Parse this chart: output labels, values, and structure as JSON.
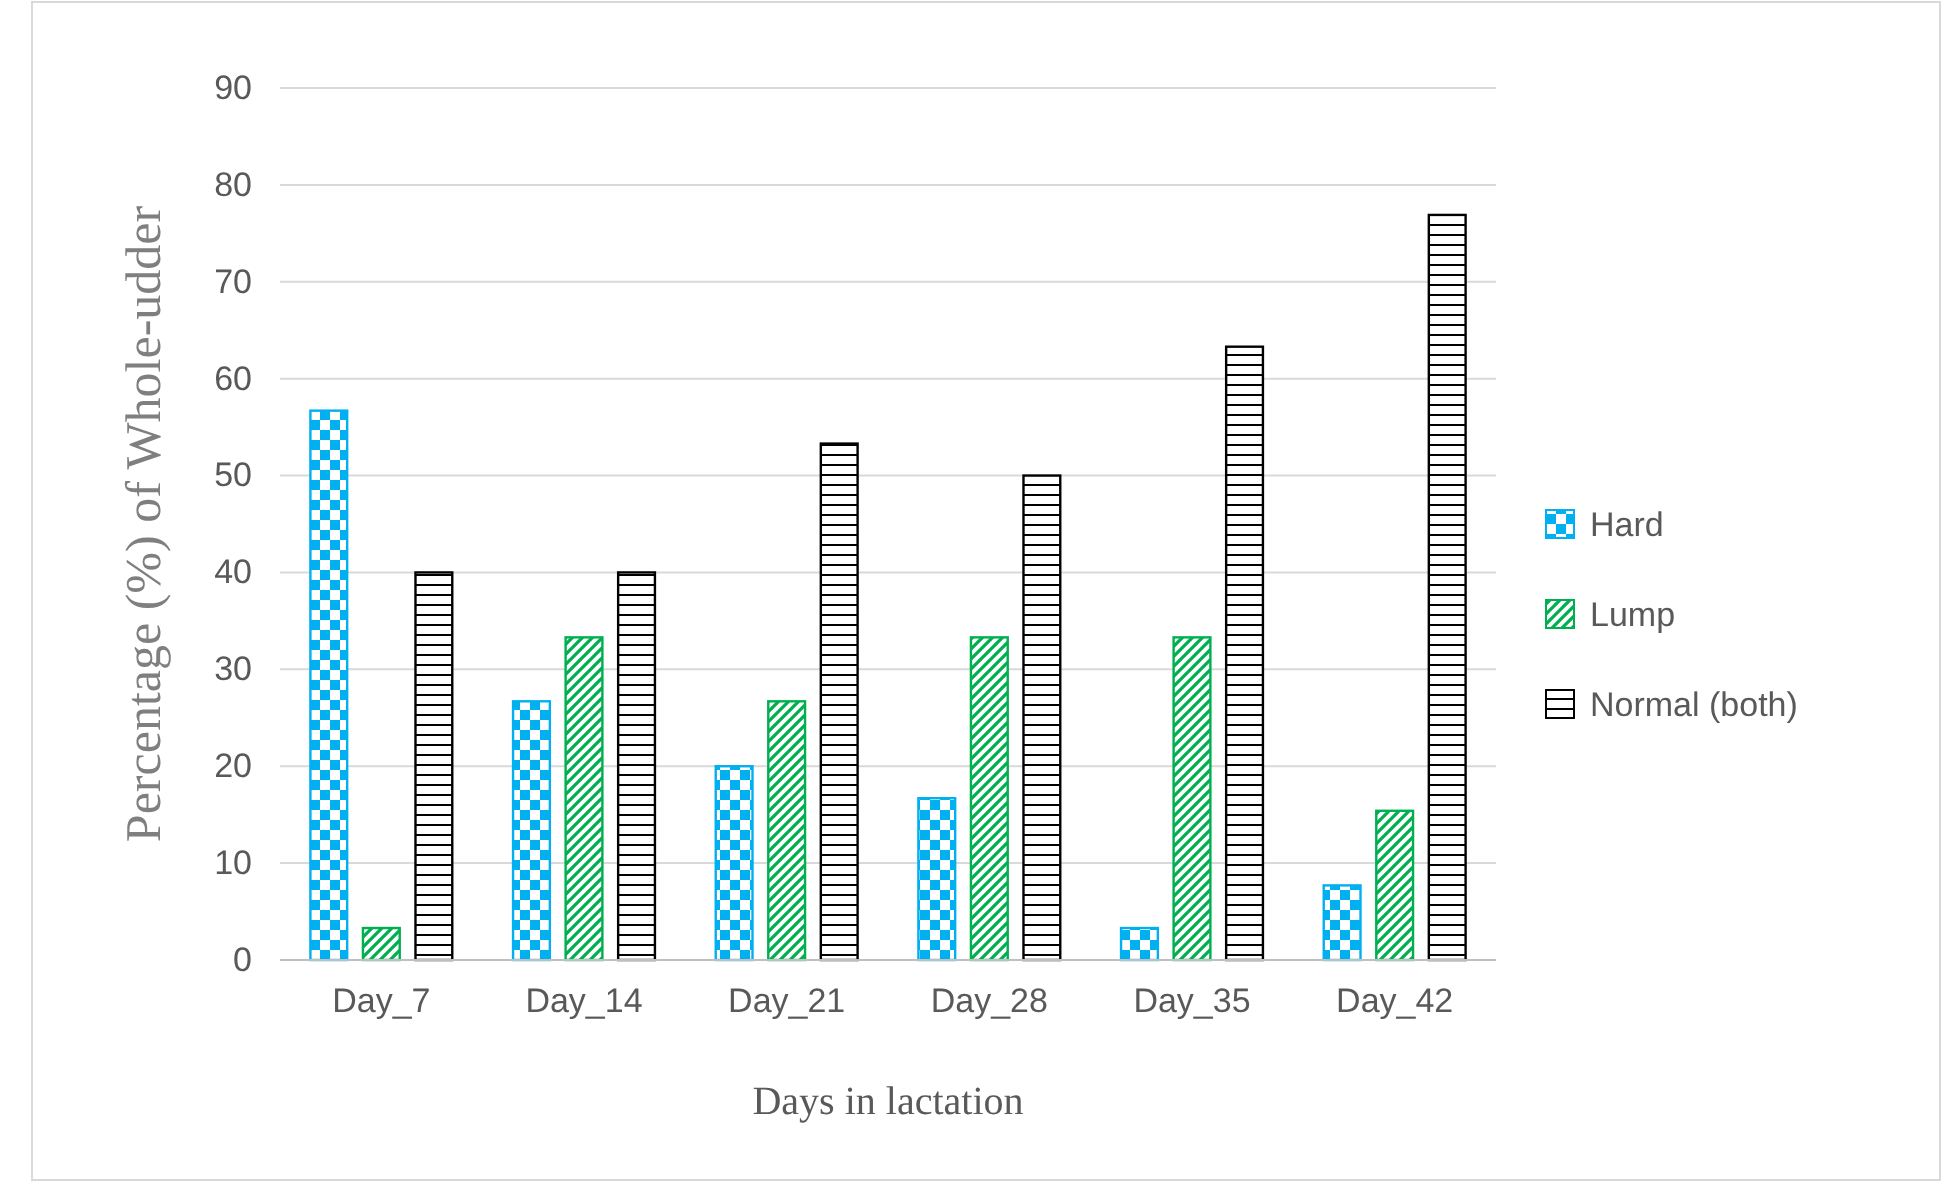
{
  "chart_data": {
    "type": "bar",
    "xlabel": "Days in lactation",
    "ylabel": "Percentage (%) of  Whole-udder",
    "categories": [
      "Day_7",
      "Day_14",
      "Day_21",
      "Day_28",
      "Day_35",
      "Day_42"
    ],
    "series": [
      {
        "name": "Hard",
        "color": "#00b0f0",
        "values": [
          56.7,
          26.7,
          20,
          16.7,
          3.3,
          7.7
        ]
      },
      {
        "name": "Lump",
        "color": "#00b050",
        "values": [
          3.3,
          33.3,
          26.7,
          33.3,
          33.3,
          15.4
        ]
      },
      {
        "name": "Normal (both)",
        "color": "#000000",
        "values": [
          40,
          40,
          53.3,
          50,
          63.3,
          76.9
        ]
      }
    ],
    "ylim": [
      0,
      90
    ],
    "yticks": [
      0,
      10,
      20,
      30,
      40,
      50,
      60,
      70,
      80,
      90
    ],
    "grid": "y",
    "legend": "right"
  }
}
